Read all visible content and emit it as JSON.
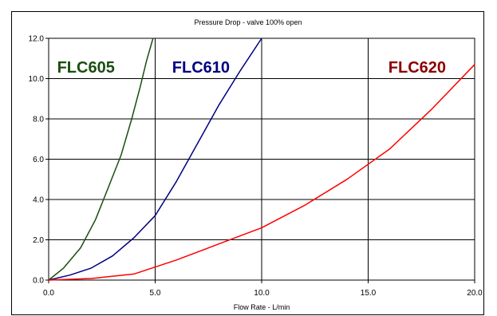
{
  "chart_data": {
    "type": "line",
    "title": "Pressure Drop - valve 100% open",
    "xlabel": "Flow Rate - L/min",
    "ylabel": "",
    "xlim": [
      0,
      20
    ],
    "ylim": [
      0,
      12
    ],
    "x_ticks": [
      "0.0",
      "5.0",
      "10.0",
      "15.0",
      "20.0"
    ],
    "y_ticks": [
      "0.0",
      "2.0",
      "4.0",
      "6.0",
      "8.0",
      "10.0",
      "12.0"
    ],
    "grid": true,
    "series": [
      {
        "name": "FLC605",
        "color": "#1a4d0f",
        "x": [
          0,
          0.7,
          1.5,
          2.2,
          2.8,
          3.4,
          3.9,
          4.3,
          4.6,
          4.9
        ],
        "y": [
          0,
          0.6,
          1.6,
          3.0,
          4.6,
          6.2,
          8.0,
          9.6,
          10.9,
          12.0
        ]
      },
      {
        "name": "FLC610",
        "color": "#000080",
        "x": [
          0,
          1.0,
          2.0,
          3.0,
          4.0,
          5.0,
          6.0,
          7.0,
          8.0,
          9.0,
          10.0
        ],
        "y": [
          0,
          0.25,
          0.6,
          1.2,
          2.1,
          3.2,
          4.9,
          6.8,
          8.7,
          10.4,
          12.0
        ]
      },
      {
        "name": "FLC620",
        "color": "#ff0000",
        "x": [
          0,
          2.0,
          4.0,
          6.0,
          8.0,
          10.0,
          12.0,
          14.0,
          16.0,
          18.0,
          20.0
        ],
        "y": [
          0,
          0.08,
          0.3,
          1.0,
          1.8,
          2.6,
          3.7,
          5.0,
          6.5,
          8.5,
          10.7
        ]
      }
    ]
  }
}
